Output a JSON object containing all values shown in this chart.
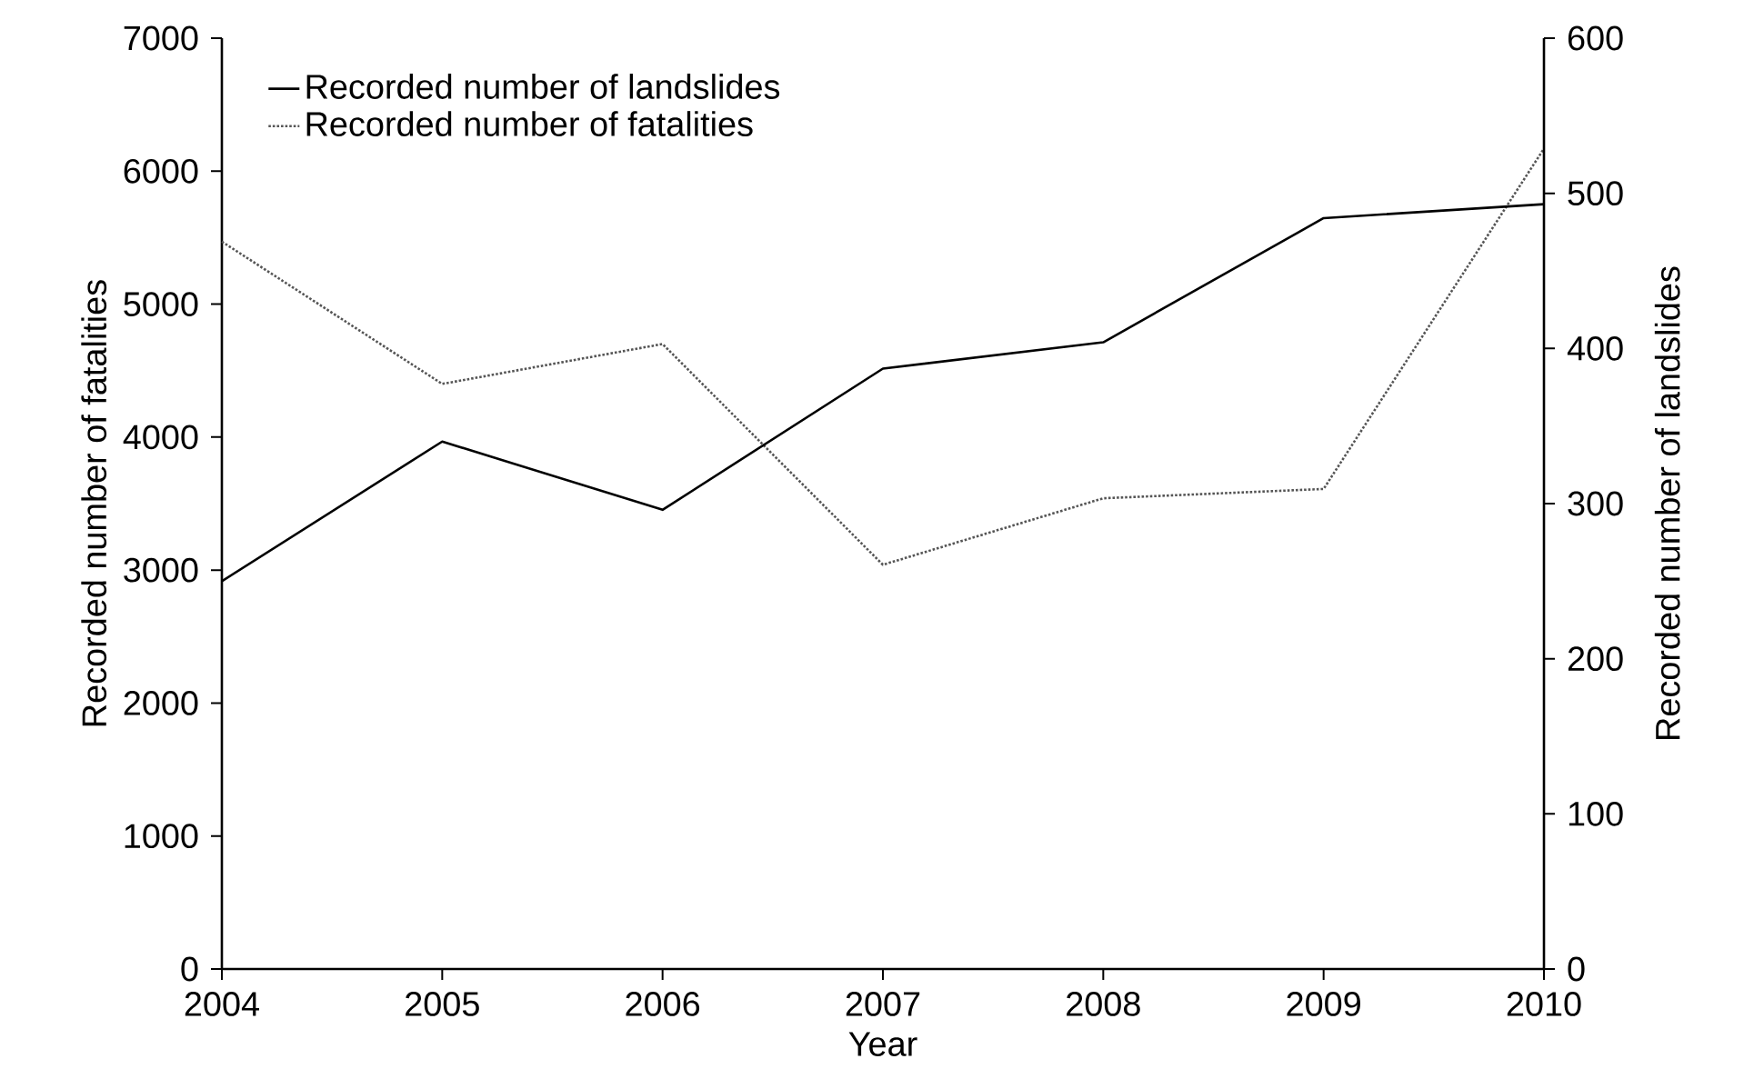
{
  "chart_data": {
    "type": "line",
    "xlabel": "Year",
    "ylabel": "Recorded number of fatalities",
    "y2label": "Recorded number of landslides",
    "x": [
      2004,
      2005,
      2006,
      2007,
      2008,
      2009,
      2010
    ],
    "series": [
      {
        "name": "Recorded number of landslides",
        "color": "#000000",
        "line_style": "solid",
        "axis": "y2",
        "values": [
          250,
          340,
          296,
          387,
          404,
          484,
          493
        ]
      },
      {
        "name": "Recorded number of fatalities",
        "color": "#555555",
        "line_style": "dotted",
        "axis": "y",
        "values": [
          5470,
          4400,
          4700,
          3040,
          3540,
          3610,
          6170
        ]
      }
    ],
    "xlim": [
      2004,
      2010
    ],
    "xticks": [
      2004,
      2005,
      2006,
      2007,
      2008,
      2009,
      2010
    ],
    "ylim": [
      0,
      7000
    ],
    "yticks": [
      0,
      1000,
      2000,
      3000,
      4000,
      5000,
      6000,
      7000
    ],
    "y2lim": [
      0,
      600
    ],
    "y2ticks": [
      0,
      100,
      200,
      300,
      400,
      500,
      600
    ],
    "legend": "top left",
    "grid": false
  }
}
